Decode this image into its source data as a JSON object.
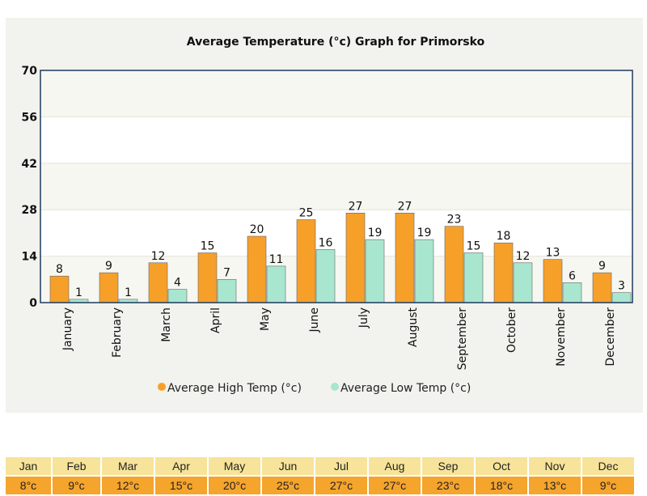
{
  "chart_data": {
    "type": "bar",
    "title": "Average Temperature (°c) Graph for Primorsko",
    "categories": [
      "January",
      "February",
      "March",
      "April",
      "May",
      "June",
      "July",
      "August",
      "September",
      "October",
      "November",
      "December"
    ],
    "series": [
      {
        "name": "Average High Temp (°c)",
        "color": "#f6a02a",
        "values": [
          8,
          9,
          12,
          15,
          20,
          25,
          27,
          27,
          23,
          18,
          13,
          9
        ]
      },
      {
        "name": "Average Low Temp (°c)",
        "color": "#a8e6cf",
        "values": [
          1,
          1,
          4,
          7,
          11,
          16,
          19,
          19,
          15,
          12,
          6,
          3
        ]
      }
    ],
    "ylim": [
      0,
      70
    ],
    "yticks": [
      0,
      14,
      28,
      42,
      56,
      70
    ],
    "grid": true,
    "legend": "bottom"
  },
  "table": {
    "months": [
      "Jan",
      "Feb",
      "Mar",
      "Apr",
      "May",
      "Jun",
      "Jul",
      "Aug",
      "Sep",
      "Oct",
      "Nov",
      "Dec"
    ],
    "values": [
      "8°c",
      "9°c",
      "12°c",
      "15°c",
      "20°c",
      "25°c",
      "27°c",
      "27°c",
      "23°c",
      "18°c",
      "13°c",
      "9°c"
    ]
  }
}
